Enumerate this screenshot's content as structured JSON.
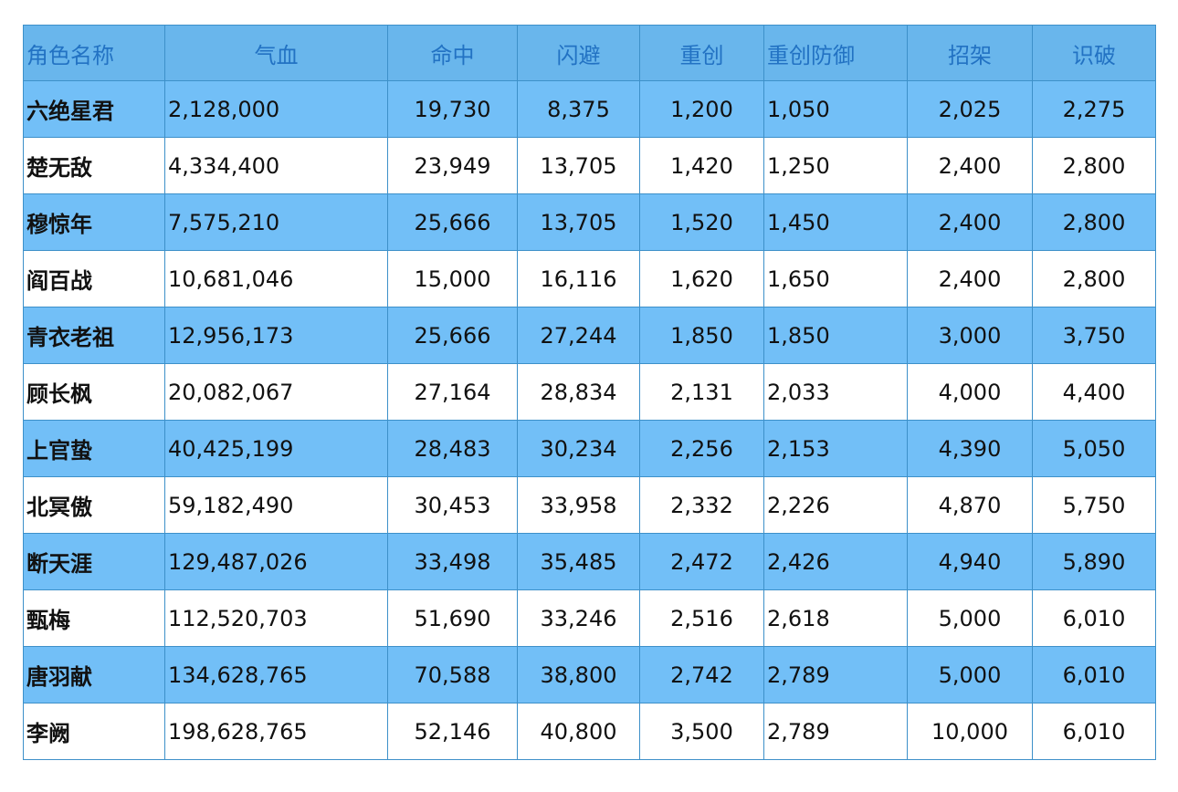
{
  "table": {
    "headers": [
      "角色名称",
      "气血",
      "命中",
      "闪避",
      "重创",
      "重创防御",
      "招架",
      "识破"
    ],
    "rows": [
      [
        "六绝星君",
        "2,128,000",
        "19,730",
        "8,375",
        "1,200",
        "1,050",
        "2,025",
        "2,275"
      ],
      [
        "楚无敌",
        "4,334,400",
        "23,949",
        "13,705",
        "1,420",
        "1,250",
        "2,400",
        "2,800"
      ],
      [
        "穆惊年",
        "7,575,210",
        "25,666",
        "13,705",
        "1,520",
        "1,450",
        "2,400",
        "2,800"
      ],
      [
        "阎百战",
        "10,681,046",
        "15,000",
        "16,116",
        "1,620",
        "1,650",
        "2,400",
        "2,800"
      ],
      [
        "青衣老祖",
        "12,956,173",
        "25,666",
        "27,244",
        "1,850",
        "1,850",
        "3,000",
        "3,750"
      ],
      [
        "顾长枫",
        "20,082,067",
        "27,164",
        "28,834",
        "2,131",
        "2,033",
        "4,000",
        "4,400"
      ],
      [
        "上官蛰",
        "40,425,199",
        "28,483",
        "30,234",
        "2,256",
        "2,153",
        "4,390",
        "5,050"
      ],
      [
        "北冥傲",
        "59,182,490",
        "30,453",
        "33,958",
        "2,332",
        "2,226",
        "4,870",
        "5,750"
      ],
      [
        "断天涯",
        "129,487,026",
        "33,498",
        "35,485",
        "2,472",
        "2,426",
        "4,940",
        "5,890"
      ],
      [
        "甄梅",
        "112,520,703",
        "51,690",
        "33,246",
        "2,516",
        "2,618",
        "5,000",
        "6,010"
      ],
      [
        "唐羽献",
        "134,628,765",
        "70,588",
        "38,800",
        "2,742",
        "2,789",
        "5,000",
        "6,010"
      ],
      [
        "李阙",
        "198,628,765",
        "52,146",
        "40,800",
        "3,500",
        "2,789",
        "10,000",
        "6,010"
      ]
    ]
  }
}
